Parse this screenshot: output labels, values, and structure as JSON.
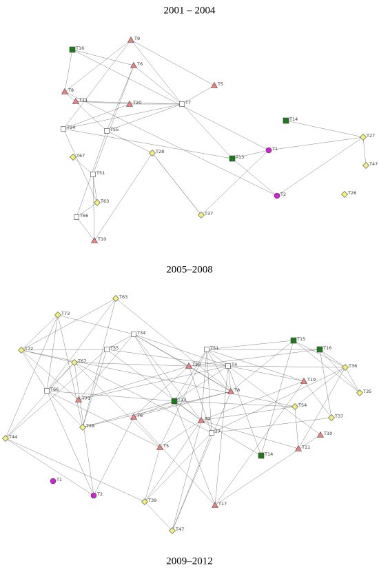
{
  "panels": [
    {
      "title": "2001 – 2004",
      "nodes": [
        "T16",
        "T9",
        "T6",
        "T5",
        "T8",
        "T71",
        "T20",
        "T7",
        "T14",
        "T34",
        "T55",
        "T27",
        "T28",
        "T1",
        "T13",
        "T67",
        "T47",
        "T51",
        "T2",
        "T26",
        "T63",
        "T37",
        "T66",
        "T10"
      ]
    },
    {
      "title": "2005–2008",
      "nodes": [
        "T63",
        "T73",
        "T34",
        "T15",
        "T72",
        "T55",
        "T51",
        "T16",
        "T67",
        "T20",
        "T4",
        "T36",
        "T19",
        "T66",
        "T8",
        "T35",
        "T71",
        "T13",
        "T54",
        "T6",
        "T9",
        "T37",
        "T28",
        "T7",
        "T10",
        "T44",
        "T5",
        "T11",
        "T14",
        "T1",
        "T2",
        "T39",
        "T17",
        "T47"
      ]
    }
  ],
  "footer_title": "2009–2012"
}
